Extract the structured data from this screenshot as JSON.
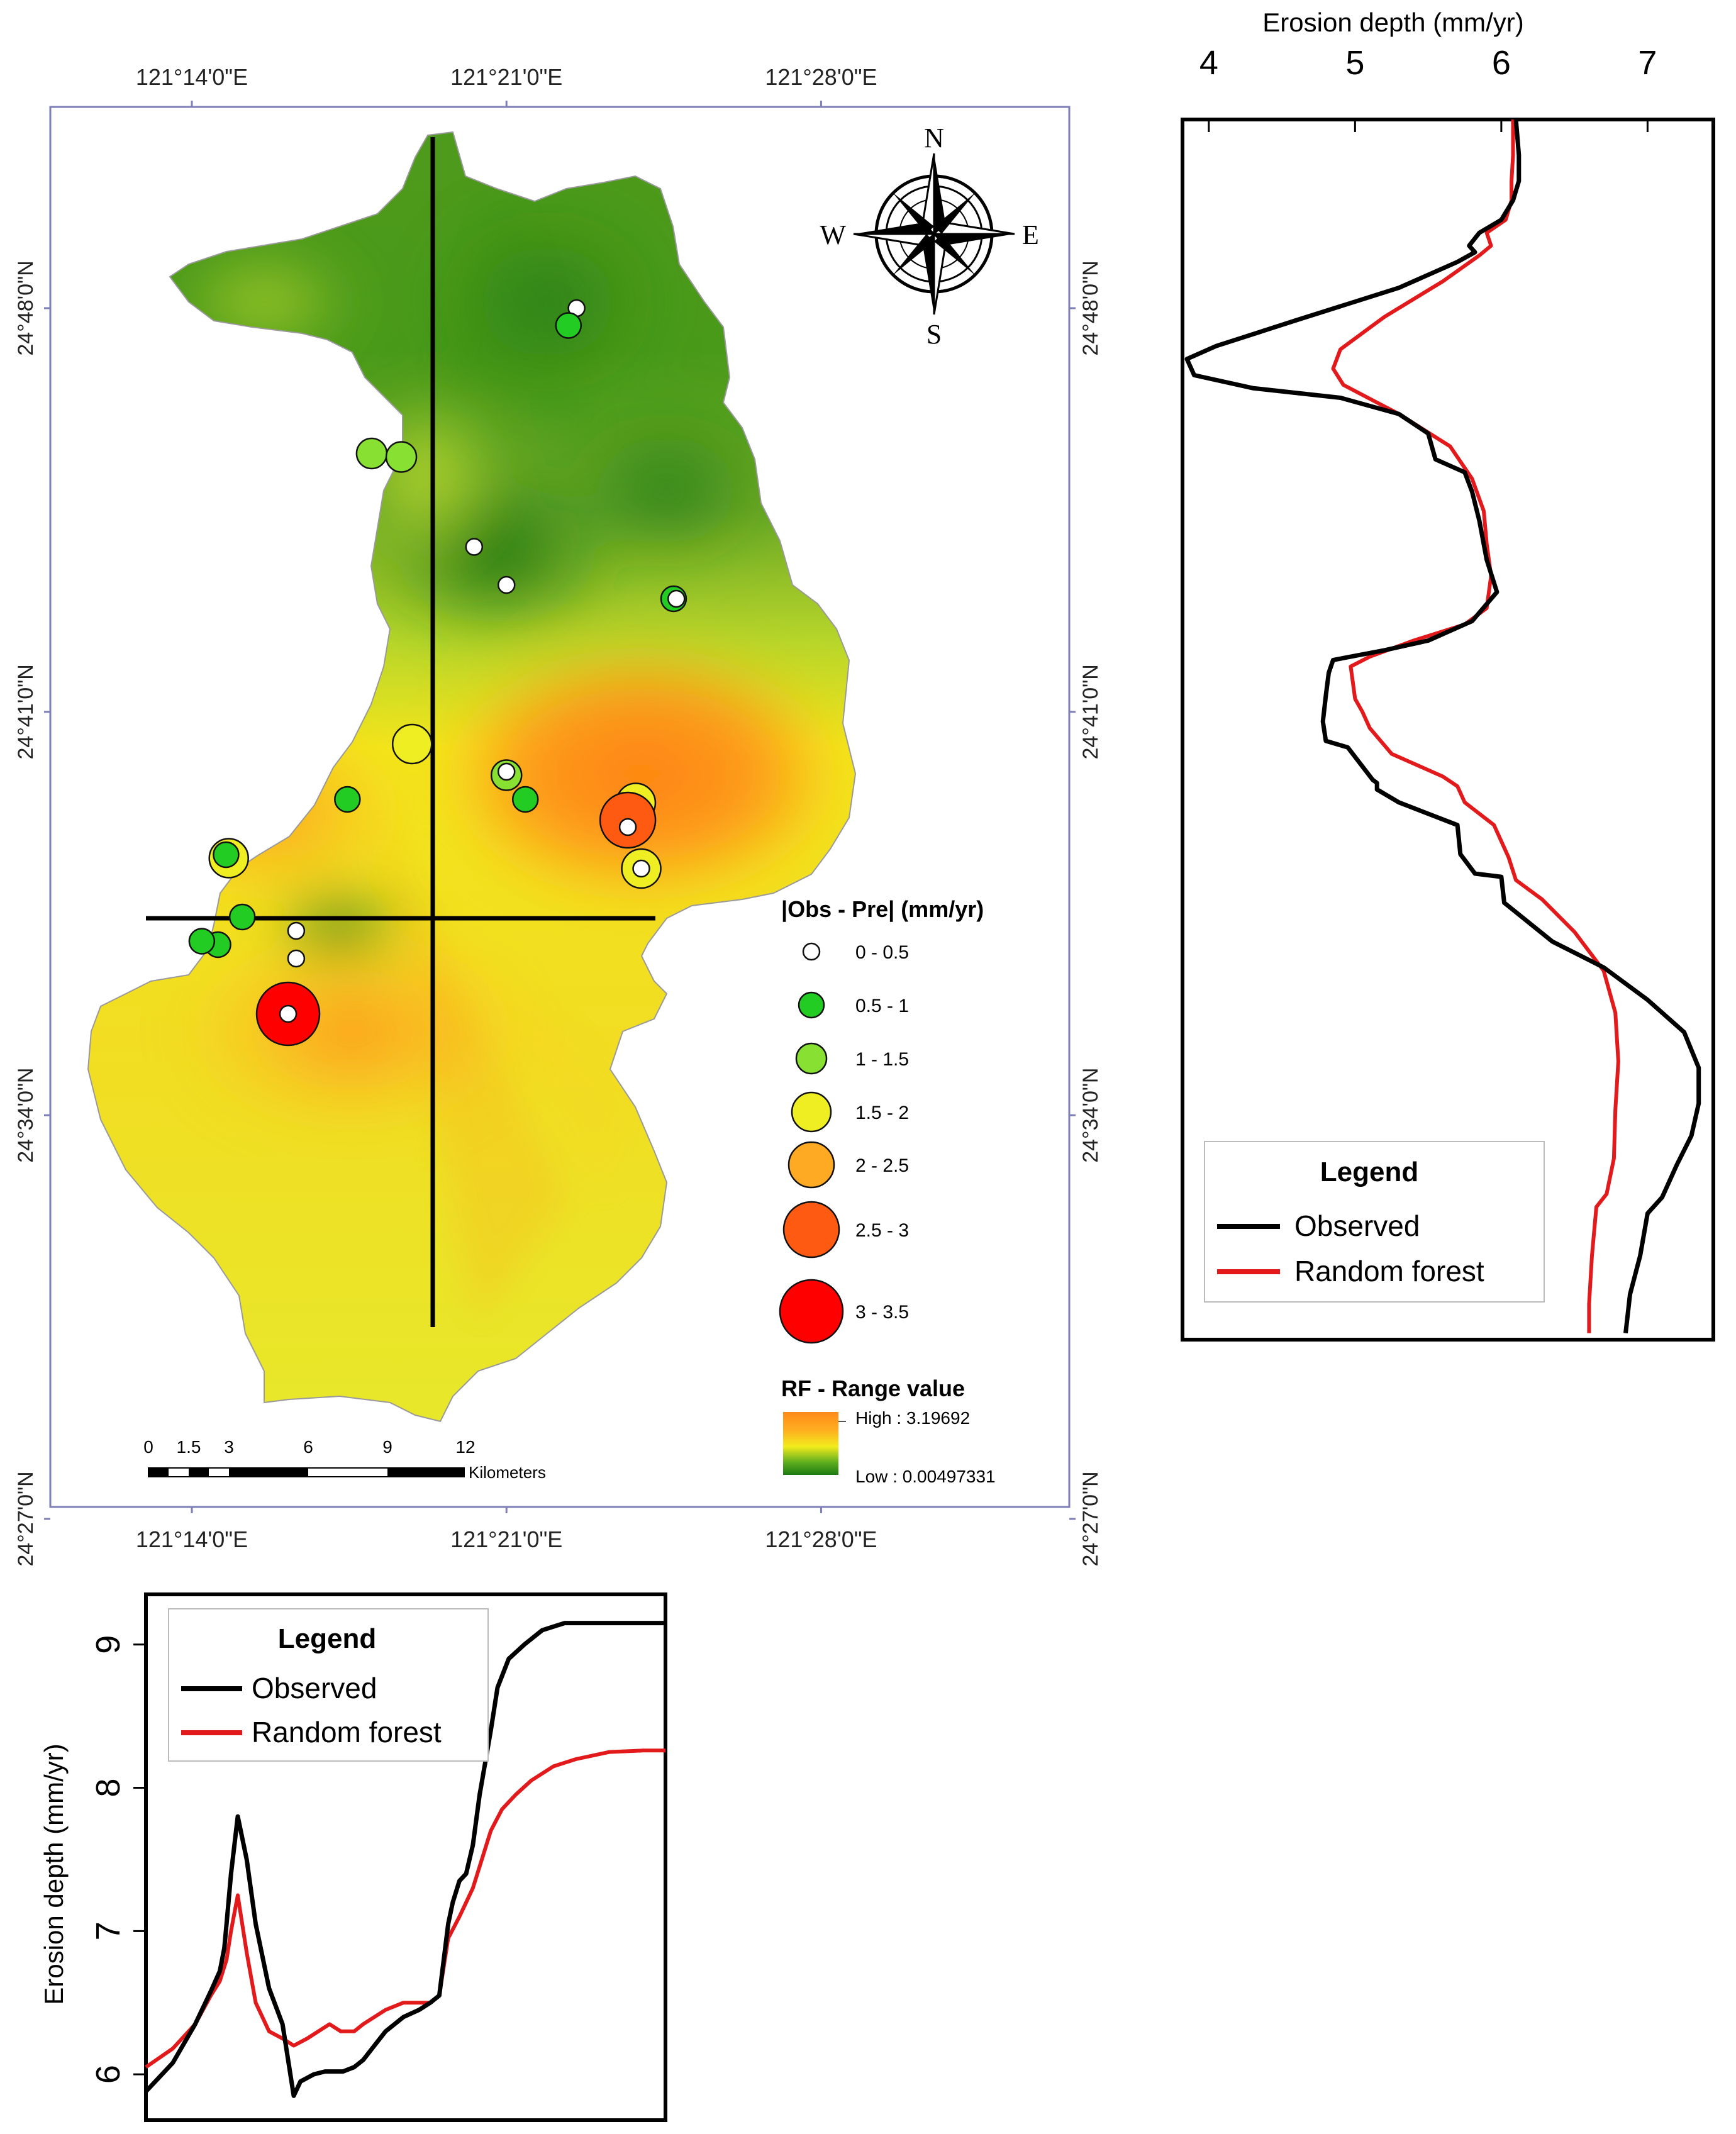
{
  "map": {
    "top_lon_labels": [
      "121°14'0\"E",
      "121°21'0\"E",
      "121°28'0\"E"
    ],
    "bottom_lon_labels": [
      "121°14'0\"E",
      "121°21'0\"E",
      "121°28'0\"E"
    ],
    "left_lat_labels": [
      "24°48'0\"N",
      "24°41'0\"N",
      "24°34'0\"N",
      "24°27'0\"N"
    ],
    "right_lat_labels": [
      "24°48'0\"N",
      "24°41'0\"N",
      "24°34'0\"N",
      "24°27'0\"N"
    ],
    "compass": {
      "n": "N",
      "s": "S",
      "e": "E",
      "w": "W"
    },
    "points_legend": {
      "title": "|Obs - Pre| (mm/yr)",
      "classes": [
        {
          "label": "0 - 0.5",
          "color": "#ffffff"
        },
        {
          "label": "0.5 - 1",
          "color": "#22cc22"
        },
        {
          "label": "1 - 1.5",
          "color": "#88e033"
        },
        {
          "label": "1.5 - 2",
          "color": "#eeee22"
        },
        {
          "label": "2 - 2.5",
          "color": "#ffaa22"
        },
        {
          "label": "2.5 - 3",
          "color": "#ff5a11"
        },
        {
          "label": "3 - 3.5",
          "color": "#ff0000"
        }
      ]
    },
    "range_legend": {
      "title": "RF - Range value",
      "high": "High : 3.19692",
      "low": "Low : 0.00497331"
    },
    "scalebar": {
      "ticks": [
        "0",
        "1.5",
        "3",
        "6",
        "9",
        "12"
      ],
      "unit": "Kilometers"
    },
    "samples": [
      {
        "cls": 0,
        "lon": 121.376,
        "lat": 24.8
      },
      {
        "cls": 1,
        "lon": 121.373,
        "lat": 24.795
      },
      {
        "cls": 2,
        "lon": 121.3,
        "lat": 24.758
      },
      {
        "cls": 2,
        "lon": 121.311,
        "lat": 24.757
      },
      {
        "cls": 0,
        "lon": 121.338,
        "lat": 24.731
      },
      {
        "cls": 0,
        "lon": 121.35,
        "lat": 24.72
      },
      {
        "cls": 1,
        "lon": 121.412,
        "lat": 24.716
      },
      {
        "cls": 0,
        "lon": 121.413,
        "lat": 24.716
      },
      {
        "cls": 3,
        "lon": 121.315,
        "lat": 24.674
      },
      {
        "cls": 2,
        "lon": 121.35,
        "lat": 24.665
      },
      {
        "cls": 0,
        "lon": 121.35,
        "lat": 24.666
      },
      {
        "cls": 1,
        "lon": 121.291,
        "lat": 24.658
      },
      {
        "cls": 1,
        "lon": 121.357,
        "lat": 24.658
      },
      {
        "cls": 3,
        "lon": 121.398,
        "lat": 24.657
      },
      {
        "cls": 0,
        "lon": 121.398,
        "lat": 24.657
      },
      {
        "cls": 5,
        "lon": 121.395,
        "lat": 24.652
      },
      {
        "cls": 0,
        "lon": 121.395,
        "lat": 24.65
      },
      {
        "cls": 3,
        "lon": 121.4,
        "lat": 24.638
      },
      {
        "cls": 0,
        "lon": 121.4,
        "lat": 24.638
      },
      {
        "cls": 3,
        "lon": 121.247,
        "lat": 24.641
      },
      {
        "cls": 1,
        "lon": 121.246,
        "lat": 24.642
      },
      {
        "cls": 1,
        "lon": 121.252,
        "lat": 24.624
      },
      {
        "cls": 0,
        "lon": 121.272,
        "lat": 24.62
      },
      {
        "cls": 1,
        "lon": 121.243,
        "lat": 24.616
      },
      {
        "cls": 1,
        "lon": 121.237,
        "lat": 24.617
      },
      {
        "cls": 0,
        "lon": 121.272,
        "lat": 24.612
      },
      {
        "cls": 6,
        "lon": 121.269,
        "lat": 24.596
      },
      {
        "cls": 0,
        "lon": 121.269,
        "lat": 24.596
      }
    ]
  },
  "right_chart": {
    "legend_title": "Legend",
    "observed_label": "Observed",
    "rf_label": "Random forest",
    "observed_color": "#000000",
    "rf_color": "#e31a1c"
  },
  "bottom_chart": {
    "legend_title": "Legend",
    "observed_label": "Observed",
    "rf_label": "Random forest",
    "observed_color": "#000000",
    "rf_color": "#e31a1c"
  },
  "chart_data": [
    {
      "type": "line",
      "orientation": "vertical-profile",
      "xlabel": "Erosion depth (mm/yr)",
      "xlim": [
        3.82,
        7.45
      ],
      "xticks": [
        4,
        5,
        6,
        7
      ],
      "ylim": [
        24.454,
        24.831
      ],
      "y_axis_note": "latitude along the N-S transect of the map",
      "series": [
        {
          "name": "Observed",
          "x": [
            6.1,
            6.12,
            6.12,
            6.08,
            6.0,
            5.85,
            5.78,
            5.82,
            5.7,
            5.3,
            4.6,
            4.05,
            3.85,
            3.9,
            4.3,
            4.9,
            5.3,
            5.5,
            5.55,
            5.75,
            5.8,
            5.85,
            5.9,
            5.97,
            5.8,
            5.5,
            5.2,
            4.85,
            4.82,
            4.8,
            4.78,
            4.8,
            4.95,
            5.12,
            5.15,
            5.15,
            5.3,
            5.7,
            5.72,
            5.82,
            6.0,
            6.02,
            6.35,
            6.7,
            7.0,
            7.25,
            7.35,
            7.35,
            7.3,
            7.2,
            7.1,
            7.0,
            6.95,
            6.88,
            6.85
          ],
          "y": [
            24.831,
            24.82,
            24.812,
            24.806,
            24.8,
            24.796,
            24.792,
            24.79,
            24.787,
            24.779,
            24.769,
            24.761,
            24.757,
            24.752,
            24.748,
            24.745,
            24.74,
            24.734,
            24.726,
            24.722,
            24.716,
            24.707,
            24.695,
            24.685,
            24.676,
            24.67,
            24.667,
            24.664,
            24.66,
            24.653,
            24.645,
            24.639,
            24.637,
            24.627,
            24.626,
            24.624,
            24.62,
            24.613,
            24.604,
            24.598,
            24.597,
            24.589,
            24.577,
            24.569,
            24.559,
            24.549,
            24.538,
            24.527,
            24.517,
            24.508,
            24.498,
            24.493,
            24.48,
            24.468,
            24.456
          ]
        },
        {
          "name": "Random forest",
          "x": [
            6.08,
            6.08,
            6.07,
            6.07,
            6.03,
            5.9,
            5.93,
            5.85,
            5.6,
            5.2,
            4.9,
            4.85,
            4.92,
            5.3,
            5.65,
            5.8,
            5.88,
            5.9,
            5.93,
            5.9,
            5.75,
            5.4,
            5.1,
            4.97,
            5.0,
            5.05,
            5.1,
            5.25,
            5.6,
            5.7,
            5.75,
            5.95,
            6.05,
            6.1,
            6.28,
            6.5,
            6.7,
            6.78,
            6.8,
            6.78,
            6.77,
            6.72,
            6.65,
            6.62,
            6.6,
            6.6
          ],
          "y": [
            24.831,
            24.82,
            24.812,
            24.806,
            24.8,
            24.796,
            24.792,
            24.789,
            24.781,
            24.77,
            24.76,
            24.754,
            24.749,
            24.74,
            24.73,
            24.72,
            24.71,
            24.7,
            24.69,
            24.68,
            24.675,
            24.67,
            24.665,
            24.662,
            24.652,
            24.648,
            24.643,
            24.635,
            24.628,
            24.625,
            24.62,
            24.613,
            24.603,
            24.596,
            24.59,
            24.58,
            24.568,
            24.555,
            24.54,
            24.525,
            24.51,
            24.499,
            24.495,
            24.48,
            24.465,
            24.456
          ]
        }
      ]
    },
    {
      "type": "line",
      "ylabel": "Erosion depth (mm/yr)",
      "ylim": [
        5.68,
        9.35
      ],
      "yticks": [
        6,
        7,
        8,
        9
      ],
      "xlim": [
        121.203,
        121.435
      ],
      "x_axis_note": "longitude along the W-E transect of the map",
      "series": [
        {
          "name": "Observed",
          "x": [
            121.203,
            121.215,
            121.225,
            121.232,
            121.236,
            121.238,
            121.239,
            121.241,
            121.244,
            121.248,
            121.252,
            121.258,
            121.264,
            121.266,
            121.269,
            121.272,
            121.278,
            121.283,
            121.287,
            121.291,
            121.296,
            121.3,
            121.305,
            121.31,
            121.318,
            121.325,
            121.33,
            121.334,
            121.338,
            121.34,
            121.343,
            121.346,
            121.349,
            121.352,
            121.357,
            121.36,
            121.365,
            121.372,
            121.38,
            121.39,
            121.405,
            121.42,
            121.435
          ],
          "y": [
            5.88,
            6.08,
            6.35,
            6.58,
            6.72,
            6.88,
            7.05,
            7.4,
            7.8,
            7.5,
            7.05,
            6.6,
            6.35,
            6.15,
            5.85,
            5.95,
            6.0,
            6.02,
            6.02,
            6.02,
            6.05,
            6.1,
            6.2,
            6.3,
            6.4,
            6.45,
            6.5,
            6.55,
            7.05,
            7.2,
            7.35,
            7.4,
            7.6,
            7.95,
            8.4,
            8.7,
            8.9,
            9.0,
            9.1,
            9.15,
            9.15,
            9.15,
            9.15
          ]
        },
        {
          "name": "Random forest",
          "x": [
            121.203,
            121.215,
            121.225,
            121.232,
            121.236,
            121.239,
            121.241,
            121.244,
            121.248,
            121.252,
            121.258,
            121.264,
            121.269,
            121.275,
            121.28,
            121.285,
            121.29,
            121.296,
            121.3,
            121.305,
            121.31,
            121.318,
            121.325,
            121.33,
            121.334,
            121.338,
            121.343,
            121.346,
            121.349,
            121.352,
            121.357,
            121.362,
            121.368,
            121.375,
            121.385,
            121.395,
            121.41,
            121.425,
            121.435
          ],
          "y": [
            6.05,
            6.18,
            6.35,
            6.55,
            6.65,
            6.8,
            7.0,
            7.25,
            6.85,
            6.5,
            6.3,
            6.25,
            6.2,
            6.25,
            6.3,
            6.35,
            6.3,
            6.3,
            6.35,
            6.4,
            6.45,
            6.5,
            6.5,
            6.5,
            6.55,
            6.95,
            7.1,
            7.2,
            7.3,
            7.45,
            7.7,
            7.85,
            7.95,
            8.05,
            8.15,
            8.2,
            8.25,
            8.26,
            8.26
          ]
        }
      ]
    }
  ]
}
